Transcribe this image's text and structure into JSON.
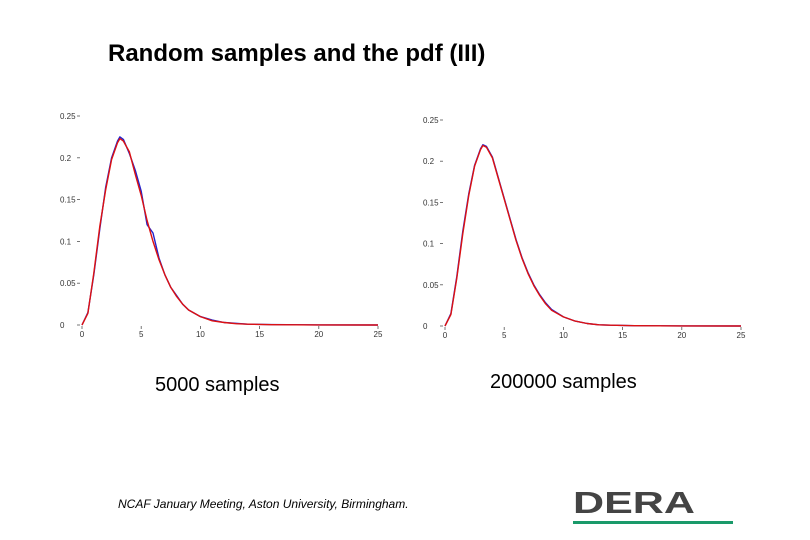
{
  "slide": {
    "title": "Random samples and the pdf (III)",
    "footer": "NCAF January Meeting, Aston University, Birmingham.",
    "logo": {
      "text": "DERA",
      "bar_color": "#1a9a6a",
      "text_color": "#444444"
    }
  },
  "chart_data": [
    {
      "type": "line",
      "caption": "5000 samples",
      "x_ticks": [
        "0",
        "5",
        "10",
        "15",
        "20",
        "25"
      ],
      "y_ticks": [
        "0",
        "0.05",
        "0.1",
        "0.15",
        "0.2",
        "0.25"
      ],
      "xlim": [
        0,
        25
      ],
      "ylim": [
        0,
        0.25
      ],
      "grid": false,
      "series": [
        {
          "color": "#2222cc",
          "x": [
            0,
            0.5,
            1,
            1.5,
            2,
            2.5,
            3,
            3.2,
            3.5,
            4,
            4.5,
            5,
            5.5,
            6,
            6.5,
            7,
            7.5,
            8,
            8.5,
            9,
            10,
            11,
            12,
            13,
            14,
            16,
            20,
            25
          ],
          "y": [
            0,
            0.015,
            0.06,
            0.115,
            0.165,
            0.2,
            0.22,
            0.225,
            0.222,
            0.205,
            0.185,
            0.16,
            0.12,
            0.11,
            0.08,
            0.06,
            0.045,
            0.035,
            0.025,
            0.018,
            0.01,
            0.006,
            0.003,
            0.002,
            0.001,
            0.0005,
            0.0001,
            0
          ]
        },
        {
          "color": "#dd1111",
          "x": [
            0,
            0.5,
            1,
            1.5,
            2,
            2.5,
            3,
            3.2,
            3.5,
            4,
            4.5,
            5,
            5.5,
            6,
            6.5,
            7,
            7.5,
            8,
            8.5,
            9,
            10,
            11,
            12,
            13,
            14,
            16,
            20,
            25
          ],
          "y": [
            0,
            0.014,
            0.062,
            0.118,
            0.162,
            0.198,
            0.218,
            0.223,
            0.22,
            0.207,
            0.18,
            0.155,
            0.125,
            0.1,
            0.078,
            0.06,
            0.045,
            0.034,
            0.025,
            0.018,
            0.01,
            0.005,
            0.003,
            0.0015,
            0.001,
            0.0004,
            0.0001,
            0
          ]
        }
      ]
    },
    {
      "type": "line",
      "caption": "200000 samples",
      "x_ticks": [
        "0",
        "5",
        "10",
        "15",
        "20",
        "25"
      ],
      "y_ticks": [
        "0",
        "0.05",
        "0.1",
        "0.15",
        "0.2",
        "0.25"
      ],
      "xlim": [
        0,
        25
      ],
      "ylim": [
        0,
        0.25
      ],
      "grid": false,
      "series": [
        {
          "color": "#2222cc",
          "x": [
            0,
            0.5,
            1,
            1.5,
            2,
            2.5,
            3,
            3.2,
            3.5,
            4,
            4.5,
            5,
            5.5,
            6,
            6.5,
            7,
            7.5,
            8,
            8.5,
            9,
            10,
            11,
            12,
            13,
            14,
            16,
            20,
            25
          ],
          "y": [
            0,
            0.015,
            0.06,
            0.115,
            0.16,
            0.195,
            0.215,
            0.22,
            0.218,
            0.205,
            0.18,
            0.155,
            0.13,
            0.105,
            0.083,
            0.065,
            0.05,
            0.038,
            0.028,
            0.02,
            0.011,
            0.006,
            0.003,
            0.0015,
            0.001,
            0.0004,
            0.0001,
            0
          ]
        },
        {
          "color": "#dd1111",
          "x": [
            0,
            0.5,
            1,
            1.5,
            2,
            2.5,
            3,
            3.2,
            3.5,
            4,
            4.5,
            5,
            5.5,
            6,
            6.5,
            7,
            7.5,
            8,
            8.5,
            9,
            10,
            11,
            12,
            13,
            14,
            16,
            20,
            25
          ],
          "y": [
            0,
            0.014,
            0.058,
            0.112,
            0.158,
            0.194,
            0.214,
            0.219,
            0.217,
            0.204,
            0.179,
            0.154,
            0.129,
            0.104,
            0.082,
            0.064,
            0.049,
            0.037,
            0.027,
            0.019,
            0.011,
            0.006,
            0.003,
            0.0015,
            0.001,
            0.0004,
            0.0001,
            0
          ]
        }
      ]
    }
  ]
}
